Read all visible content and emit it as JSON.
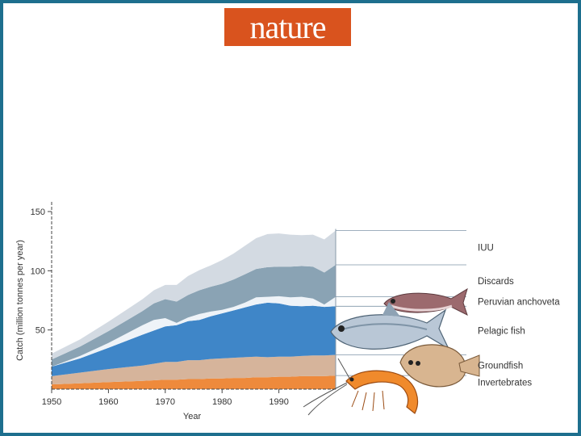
{
  "header": {
    "logo_text": "nature"
  },
  "colors": {
    "frame": "#1d6f8e",
    "logo_bg": "#d9531e",
    "IUU": "#d3dae2",
    "Discards": "#8aa3b4",
    "Peruvian anchoveta": "#eef3f8",
    "Pelagic fish": "#3f86c8",
    "Groundfish": "#d6b49b",
    "Invertebrates": "#ee8a3c"
  },
  "chart_data": {
    "type": "area",
    "title": "",
    "xlabel": "Year",
    "ylabel": "Catch (million tonnes per year)",
    "xlim": [
      1950,
      2000
    ],
    "ylim": [
      0,
      150
    ],
    "xticks": [
      1950,
      1960,
      1970,
      1980,
      1990
    ],
    "yticks": [
      50,
      100,
      150
    ],
    "grid": false,
    "legend": "right",
    "x": [
      1950,
      1955,
      1960,
      1963,
      1966,
      1968,
      1970,
      1972,
      1974,
      1976,
      1978,
      1980,
      1982,
      1984,
      1986,
      1988,
      1990,
      1992,
      1994,
      1996,
      1998,
      2000
    ],
    "series": [
      {
        "name": "Invertebrates",
        "values": [
          4,
          5,
          6,
          6.5,
          7,
          7.5,
          8,
          8,
          8.5,
          8.5,
          9,
          9,
          9.5,
          9.5,
          10,
          10,
          10.5,
          10.5,
          11,
          11,
          11,
          11.5
        ]
      },
      {
        "name": "Groundfish",
        "values": [
          7,
          9,
          11,
          12,
          13,
          14,
          15,
          15,
          16,
          16,
          16.5,
          17,
          17,
          17.5,
          17.5,
          17,
          17,
          17,
          17,
          17.5,
          17.5,
          17.5
        ]
      },
      {
        "name": "Pelagic fish",
        "values": [
          8,
          12,
          18,
          22,
          26,
          28,
          30,
          31,
          33,
          34,
          36,
          38,
          40,
          42,
          44,
          46,
          45,
          43,
          42,
          42,
          41,
          41
        ]
      },
      {
        "name": "Peruvian anchoveta",
        "values": [
          0,
          2,
          4,
          6,
          8,
          9,
          7,
          2,
          3,
          5,
          4,
          3,
          3,
          4,
          6,
          5,
          6,
          7,
          8,
          6,
          2,
          8
        ]
      },
      {
        "name": "Discards",
        "values": [
          6,
          8,
          10,
          11,
          12,
          14,
          16,
          18,
          19,
          20,
          21,
          22,
          23,
          24,
          24,
          25,
          25,
          26,
          26,
          27,
          27,
          27
        ]
      },
      {
        "name": "IUU",
        "values": [
          5,
          6,
          8,
          9,
          10,
          11,
          12,
          14,
          16,
          17,
          18,
          20,
          22,
          24,
          26,
          28,
          28,
          27,
          26,
          27,
          28,
          29
        ]
      }
    ],
    "legend_order": [
      "IUU",
      "Discards",
      "Peruvian anchoveta",
      "Pelagic fish",
      "Groundfish",
      "Invertebrates"
    ]
  }
}
